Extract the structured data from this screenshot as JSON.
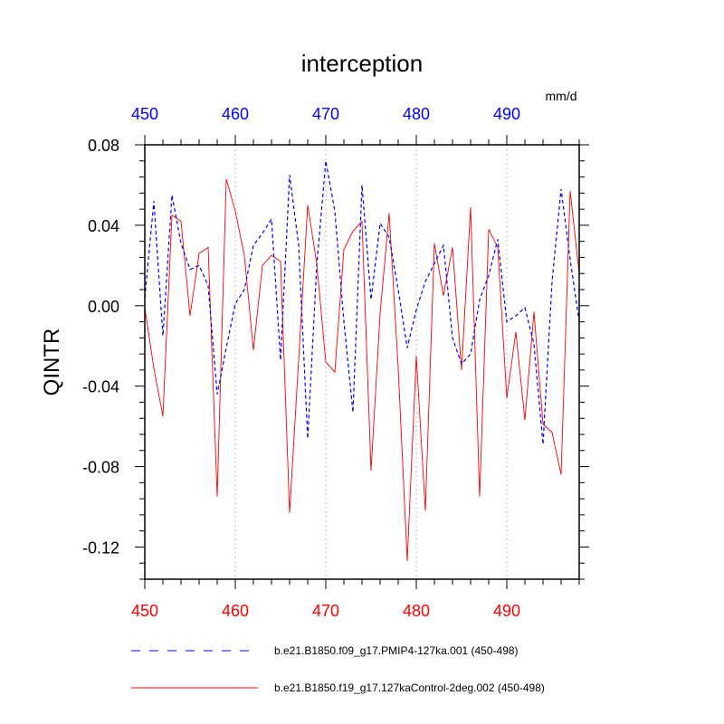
{
  "chart_data": {
    "type": "line",
    "title": "interception",
    "ylabel": "QINTR",
    "units": "mm/d",
    "xlim": [
      450,
      498
    ],
    "ylim": [
      -0.136,
      0.08
    ],
    "x_major_ticks": [
      450,
      460,
      470,
      480,
      490
    ],
    "x_top_tick_labels": [
      "450",
      "460",
      "470",
      "480",
      "490"
    ],
    "x_bottom_tick_labels": [
      "450",
      "460",
      "470",
      "480",
      "490"
    ],
    "y_major_ticks": [
      0.08,
      0.04,
      0.0,
      -0.04,
      -0.08,
      -0.12
    ],
    "y_tick_labels": [
      "0.08",
      "0.04",
      "0.00",
      "-0.04",
      "-0.08",
      "-0.12"
    ],
    "vertical_grid": "dotted at x major ticks",
    "colors": {
      "top_axis_labels": "#0000ff",
      "bottom_axis_labels": "#ff0000",
      "series_pmip4": "#0000ff",
      "series_control": "#ff0000"
    },
    "legend_placement": "below-plot",
    "x": [
      450,
      451,
      452,
      453,
      454,
      455,
      456,
      457,
      458,
      459,
      460,
      461,
      462,
      463,
      464,
      465,
      466,
      467,
      468,
      469,
      470,
      471,
      472,
      473,
      474,
      475,
      476,
      477,
      478,
      479,
      480,
      481,
      482,
      483,
      484,
      485,
      486,
      487,
      488,
      489,
      490,
      491,
      492,
      493,
      494,
      495,
      496,
      497,
      498
    ],
    "series": [
      {
        "name": "b.e21.B1850.f09_g17.PMIP4-127ka.001 (450-498)",
        "style": "dashed",
        "values": [
          0.004,
          0.052,
          -0.015,
          0.055,
          0.031,
          0.018,
          0.02,
          0.01,
          -0.044,
          -0.021,
          0.001,
          0.008,
          0.03,
          0.036,
          0.043,
          -0.027,
          0.065,
          0.03,
          -0.066,
          0.02,
          0.072,
          0.047,
          -0.008,
          -0.053,
          0.06,
          0.003,
          0.041,
          0.034,
          0.008,
          -0.021,
          -0.002,
          0.012,
          0.021,
          0.03,
          -0.016,
          -0.029,
          -0.024,
          0.003,
          0.015,
          0.033,
          -0.008,
          -0.005,
          -0.001,
          -0.019,
          -0.069,
          0.012,
          0.058,
          0.023,
          -0.008
        ]
      },
      {
        "name": "b.e21.B1850.f19_g17.127kaControl-2deg.002 (450-498)",
        "style": "solid",
        "values": [
          -0.001,
          -0.031,
          -0.055,
          0.045,
          0.042,
          -0.005,
          0.026,
          0.029,
          -0.095,
          0.063,
          0.047,
          0.025,
          -0.022,
          0.02,
          0.025,
          0.022,
          -0.103,
          -0.027,
          0.05,
          0.021,
          -0.028,
          -0.033,
          0.028,
          0.037,
          0.042,
          -0.082,
          -0.004,
          0.046,
          -0.031,
          -0.127,
          -0.025,
          -0.102,
          0.031,
          0.005,
          0.029,
          -0.032,
          0.049,
          -0.095,
          0.038,
          0.029,
          -0.046,
          -0.013,
          -0.057,
          -0.003,
          -0.059,
          -0.063,
          -0.084,
          0.057,
          0.016
        ]
      }
    ]
  }
}
